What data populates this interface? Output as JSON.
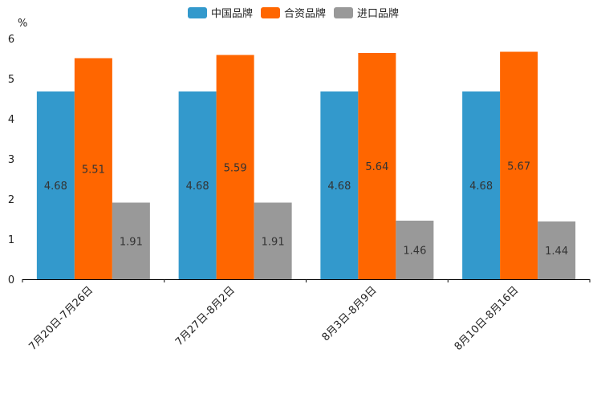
{
  "chart_data": {
    "type": "bar",
    "title": "",
    "xlabel": "",
    "ylabel": "%",
    "ylim": [
      0,
      6
    ],
    "yticks": [
      0,
      1,
      2,
      3,
      4,
      5,
      6
    ],
    "grid": false,
    "legend_position": "top-center",
    "categories": [
      "7月20日-7月26日",
      "7月27日-8月2日",
      "8月3日-8月9日",
      "8月10日-8月16日"
    ],
    "series": [
      {
        "name": "中国品牌",
        "color": "#3399CC",
        "values": [
          4.68,
          4.68,
          4.68,
          4.68
        ]
      },
      {
        "name": "合资品牌",
        "color": "#FF6600",
        "values": [
          5.51,
          5.59,
          5.64,
          5.67
        ]
      },
      {
        "name": "进口品牌",
        "color": "#999999",
        "values": [
          1.91,
          1.91,
          1.46,
          1.44
        ]
      }
    ]
  }
}
